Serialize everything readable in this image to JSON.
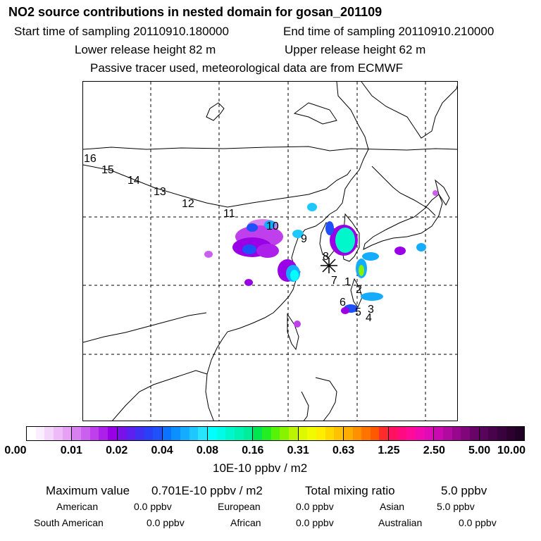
{
  "header": {
    "title": "NO2 source contributions in nested domain for gosan_201109",
    "start_time": "Start time of sampling 20110910.180000",
    "end_time": "End time of sampling 20110910.210000",
    "lower_release": "Lower release height   82 m",
    "upper_release": "Upper release height   62 m",
    "tracer_note": "Passive tracer used, meteorological data are from ECMWF"
  },
  "map": {
    "trajectory_labels": [
      "1",
      "2",
      "3",
      "4",
      "5",
      "6",
      "7",
      "8",
      "9",
      "10",
      "11",
      "12",
      "13",
      "14",
      "15",
      "16"
    ]
  },
  "colorbar": {
    "labels": [
      "0.00",
      "0.01",
      "0.02",
      "0.04",
      "0.08",
      "0.16",
      "0.31",
      "0.63",
      "1.25",
      "2.50",
      "5.00",
      "10.00"
    ],
    "colors": [
      [
        "#ffffff",
        "#fbeefe",
        "#f5d6fb",
        "#eebaf7",
        "#e6a0f4"
      ],
      [
        "#d880f0",
        "#cc60ee",
        "#bf3fec",
        "#ad1fea",
        "#9900e6"
      ],
      [
        "#7a10ea",
        "#5d20ee",
        "#4030f2",
        "#2a40f6",
        "#2050f8"
      ],
      [
        "#0a74ff",
        "#0a90ff",
        "#14acff",
        "#1ec8ff",
        "#28e4ff"
      ],
      [
        "#00ffff",
        "#00fbe6",
        "#00f7cc",
        "#00f3b3",
        "#00ee99"
      ],
      [
        "#00e650",
        "#22ee22",
        "#55f20a",
        "#88f300",
        "#bbf500"
      ],
      [
        "#ddf800",
        "#f2fa00",
        "#ffee00",
        "#ffd800",
        "#ffc200"
      ],
      [
        "#ffac00",
        "#ff9000",
        "#ff7400",
        "#ff5800",
        "#ff2a2a"
      ],
      [
        "#ff1060",
        "#ff0a80",
        "#ff0a9a",
        "#f00ab0",
        "#e00ab8"
      ],
      [
        "#c80ab0",
        "#b00aa0",
        "#98088e",
        "#80067a",
        "#680468"
      ],
      [
        "#58045a",
        "#48034c",
        "#3a023e",
        "#2c0130",
        "#200024"
      ]
    ],
    "unit": "10E-10 ppbv / m2"
  },
  "summary": {
    "max_label": "Maximum value",
    "max_value": "0.701E-10 ppbv / m2",
    "total_label": "Total mixing ratio",
    "total_value": "5.0 ppbv",
    "regions": [
      {
        "name": "American",
        "value": "0.0 ppbv"
      },
      {
        "name": "European",
        "value": "0.0 ppbv"
      },
      {
        "name": "Asian",
        "value": "5.0 ppbv"
      },
      {
        "name": "South American",
        "value": "0.0 ppbv"
      },
      {
        "name": "African",
        "value": "0.0 ppbv"
      },
      {
        "name": "Australian",
        "value": "0.0 ppbv"
      }
    ]
  }
}
